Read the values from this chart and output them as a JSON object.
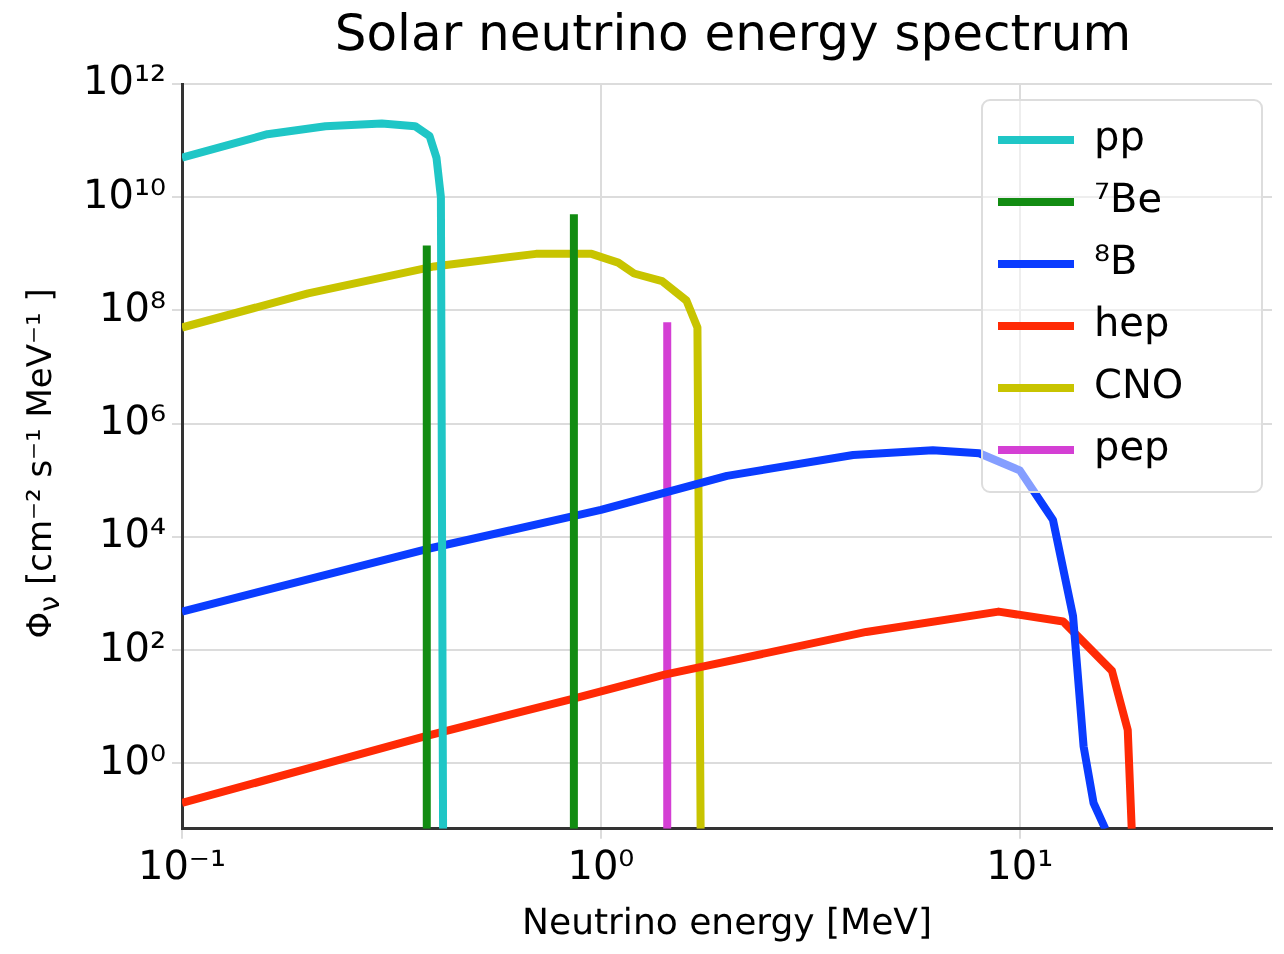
{
  "chart_data": {
    "type": "line",
    "title": "Solar neutrino energy spectrum",
    "xlabel": "Neutrino energy [MeV]",
    "ylabel": "Φ$_{ν}$ [cm⁻² s⁻¹ MeV⁻¹ ]",
    "log": "xy",
    "grid": true,
    "legend": "top right",
    "line_style": "solid",
    "marker": "none",
    "xlim": [
      0.1,
      40
    ],
    "xticks": [
      {
        "value": 0.1,
        "label": "10⁻¹"
      },
      {
        "value": 1,
        "label": "10⁰"
      },
      {
        "value": 10,
        "label": "10¹"
      }
    ],
    "ylim": [
      0.07,
      1000000000000.0
    ],
    "yticks": [
      {
        "value": 1,
        "label": "10⁰"
      },
      {
        "value": 100,
        "label": "10²"
      },
      {
        "value": 10000,
        "label": "10⁴"
      },
      {
        "value": 1000000,
        "label": "10⁶"
      },
      {
        "value": 100000000,
        "label": "10⁸"
      },
      {
        "value": 10000000000,
        "label": "10¹⁰"
      },
      {
        "value": 1000000000000,
        "label": "10¹²"
      }
    ],
    "series": [
      {
        "name": "pp",
        "color": "#1fc6c6",
        "x": [
          0.1,
          0.16,
          0.22,
          0.3,
          0.36,
          0.39,
          0.405,
          0.415,
          0.42
        ],
        "values": [
          50000000000.0,
          130000000000.0,
          180000000000.0,
          200000000000.0,
          180000000000.0,
          120000000000.0,
          50000000000.0,
          10000000000.0,
          0.07
        ]
      },
      {
        "name": "⁷Be",
        "color": "#128c12",
        "x": [
          0.384,
          0.384
        ],
        "values": [
          0.07,
          1400000000.0
        ]
      },
      {
        "color": "#128c12",
        "x": [
          0.862,
          0.862
        ],
        "values": [
          0.07,
          5000000000.0
        ]
      },
      {
        "name": "⁸B",
        "color": "#0a3cff",
        "x": [
          0.1,
          0.38,
          1,
          2,
          4,
          6.2,
          8,
          10,
          12,
          13.4,
          14.2,
          15,
          16
        ],
        "values": [
          480,
          6000,
          30000,
          120000,
          280000,
          340000,
          300000,
          150000,
          20000,
          400,
          2,
          0.2,
          0.07
        ]
      },
      {
        "name": "hep",
        "color": "#ff2a05",
        "x": [
          0.1,
          0.38,
          0.86,
          1.42,
          4.3,
          8.9,
          12.7,
          16.6,
          18.1,
          18.5
        ],
        "values": [
          0.2,
          3,
          14,
          37,
          210,
          480,
          320,
          43,
          3.9,
          0.07
        ]
      },
      {
        "name": "CNO",
        "color": "#c8c400",
        "x": [
          0.1,
          0.2,
          0.4,
          0.7,
          0.95,
          1.1,
          1.2,
          1.4,
          1.6,
          1.7,
          1.73
        ],
        "values": [
          50000000.0,
          200000000.0,
          600000000.0,
          1000000000.0,
          1000000000.0,
          700000000.0,
          450000000.0,
          330000000.0,
          150000000.0,
          50000000.0,
          0.07
        ]
      },
      {
        "name": "pep",
        "color": "#d43fd4",
        "x": [
          1.44,
          1.44
        ],
        "values": [
          0.07,
          62000000.0
        ]
      }
    ]
  }
}
